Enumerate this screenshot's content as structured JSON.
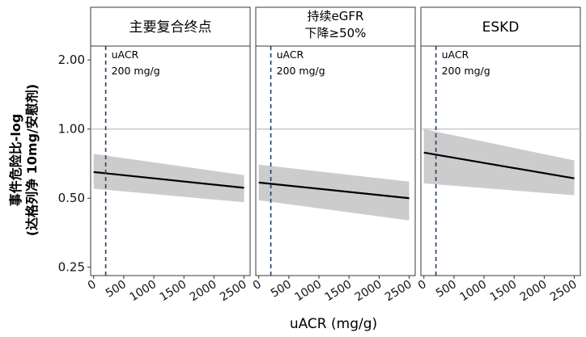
{
  "chart_data": {
    "type": "line",
    "ylabel": [
      "事件危险比-log",
      "(达格列净 10mg/安慰剂)"
    ],
    "xlabel": "uACR (mg/g)",
    "y_scale": "log",
    "ylim": [
      0.23,
      2.3
    ],
    "xlim": [
      -50,
      2600
    ],
    "y_ticks": [
      0.25,
      0.5,
      1.0,
      2.0
    ],
    "y_tick_labels": [
      "0.25",
      "0.50",
      "1.00",
      "2.00"
    ],
    "x_ticks": [
      0,
      500,
      1000,
      1500,
      2000,
      2500
    ],
    "x_tick_labels": [
      "0",
      "500",
      "1000",
      "1500",
      "2000",
      "2500"
    ],
    "reference_hr": 1.0,
    "reference_uacr": 200,
    "reference_label": [
      "uACR",
      "200 mg/g"
    ],
    "panels": [
      {
        "title": [
          "主要复合终点"
        ],
        "x": [
          0,
          2500
        ],
        "hr": [
          0.65,
          0.555
        ],
        "lower": [
          0.55,
          0.48
        ],
        "upper": [
          0.78,
          0.63
        ]
      },
      {
        "title": [
          "持续eGFR",
          "下降≥50%"
        ],
        "x": [
          0,
          2500
        ],
        "hr": [
          0.585,
          0.5
        ],
        "lower": [
          0.49,
          0.4
        ],
        "upper": [
          0.7,
          0.59
        ]
      },
      {
        "title": [
          "ESKD"
        ],
        "x": [
          0,
          2500
        ],
        "hr": [
          0.79,
          0.61
        ],
        "lower": [
          0.58,
          0.515
        ],
        "upper": [
          1.0,
          0.73
        ]
      }
    ]
  }
}
